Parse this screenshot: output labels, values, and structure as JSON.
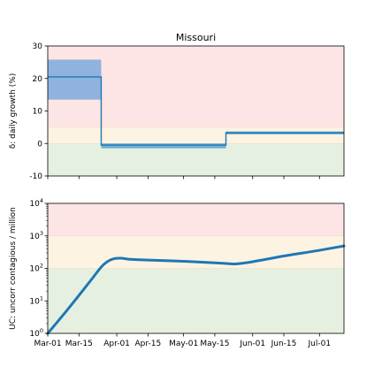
{
  "chart_data": [
    {
      "type": "line",
      "title": "Missouri",
      "ylabel": "δ: daily growth (%)",
      "ylim": [
        -10,
        30
      ],
      "yticks": [
        -10,
        0,
        10,
        20,
        30
      ],
      "xlim": [
        "2020-03-01",
        "2020-07-12"
      ],
      "grid": false,
      "bands": [
        {
          "from": -10,
          "to": 0,
          "color": "#e6f0e1"
        },
        {
          "from": 0,
          "to": 5,
          "color": "#fdf3e3"
        },
        {
          "from": 5,
          "to": 30,
          "color": "#fde5e5"
        }
      ],
      "series": [
        {
          "kind": "step",
          "color": "#1f77b4",
          "segments": [
            {
              "start": "2020-03-01",
              "end": "2020-03-25",
              "value": 20.5,
              "lower": 13.5,
              "upper": 25.8,
              "band_color": "#8fb3de"
            },
            {
              "start": "2020-03-25",
              "end": "2020-05-20",
              "value": -0.5,
              "lower": -1.5,
              "upper": 0.0,
              "band_color": "#6fb0d6"
            },
            {
              "start": "2020-05-20",
              "end": "2020-07-12",
              "value": 3.3,
              "lower": 2.8,
              "upper": 3.7,
              "band_color": "#6fb0d6"
            }
          ]
        }
      ]
    },
    {
      "type": "line",
      "ylabel": "UC: uncorr contagious / million",
      "yscale": "log",
      "ylim": [
        1,
        10000
      ],
      "yticks": [
        {
          "value": 1,
          "exp": "0"
        },
        {
          "value": 10,
          "exp": "1"
        },
        {
          "value": 100,
          "exp": "2"
        },
        {
          "value": 1000,
          "exp": "3"
        },
        {
          "value": 10000,
          "exp": "4"
        }
      ],
      "xlim": [
        "2020-03-01",
        "2020-07-12"
      ],
      "xticks": [
        "Mar-01",
        "Mar-15",
        "Apr-01",
        "Apr-15",
        "May-01",
        "May-15",
        "Jun-01",
        "Jun-15",
        "Jul-01"
      ],
      "xtick_dates": [
        "2020-03-01",
        "2020-03-15",
        "2020-04-01",
        "2020-04-15",
        "2020-05-01",
        "2020-05-15",
        "2020-06-01",
        "2020-06-15",
        "2020-07-01"
      ],
      "grid": false,
      "bands": [
        {
          "from": 1,
          "to": 100,
          "color": "#e6f0e1"
        },
        {
          "from": 100,
          "to": 1000,
          "color": "#fdf3e3"
        },
        {
          "from": 1000,
          "to": 10000,
          "color": "#fde5e5"
        }
      ],
      "series": [
        {
          "color": "#1f77b4",
          "x": [
            "2020-03-01",
            "2020-03-10",
            "2020-03-20",
            "2020-03-25",
            "2020-03-28",
            "2020-03-31",
            "2020-04-03",
            "2020-04-07",
            "2020-04-15",
            "2020-05-01",
            "2020-05-15",
            "2020-05-21",
            "2020-05-25",
            "2020-06-01",
            "2020-06-15",
            "2020-07-01",
            "2020-07-12"
          ],
          "y": [
            1,
            5.5,
            40,
            110,
            165,
            200,
            205,
            190,
            180,
            165,
            148,
            140,
            138,
            160,
            240,
            360,
            490
          ]
        }
      ]
    }
  ]
}
